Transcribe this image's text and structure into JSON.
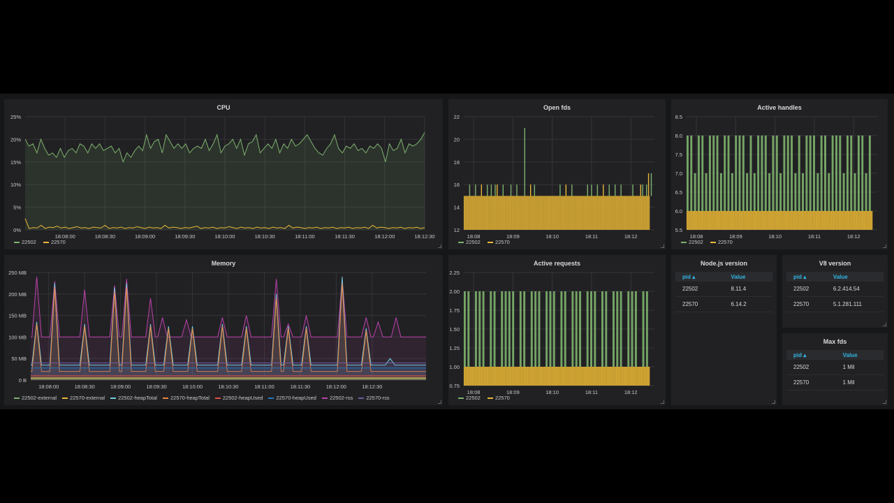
{
  "colors": {
    "green": "#7eb26d",
    "yellow": "#eab839",
    "blue": "#6ed0e0",
    "orange": "#ef843c",
    "red": "#e24d42",
    "darkblue": "#1f78c1",
    "pink": "#ba43a9",
    "violet": "#705da0"
  },
  "panels": {
    "cpu": {
      "title": "CPU",
      "chart_data": {
        "type": "line",
        "title": "CPU",
        "y_ticks": [
          "0%",
          "5%",
          "10%",
          "15%",
          "20%",
          "25%"
        ],
        "ylim": [
          0,
          25
        ],
        "x_ticks": [
          "18:08:00",
          "18:08:30",
          "18:09:00",
          "18:09:30",
          "18:10:00",
          "18:10:30",
          "18:11:00",
          "18:11:30",
          "18:12:00",
          "18:12:30"
        ],
        "xlim_seconds": [
          0,
          300
        ],
        "legend": [
          "22502",
          "22570"
        ],
        "series": [
          {
            "name": "22502",
            "color": "#7eb26d",
            "fill": true,
            "values": [
              20,
              18.5,
              19,
              17,
              20,
              18,
              16.5,
              17,
              16,
              18,
              16,
              17.5,
              18,
              17,
              19,
              18.5,
              17,
              19,
              18,
              19,
              17.5,
              18,
              18.5,
              17,
              18,
              15,
              17,
              16,
              17.5,
              18.5,
              17.5,
              21,
              18,
              19.5,
              20,
              17,
              21,
              19.5,
              18,
              19,
              18,
              19,
              17,
              18,
              18.5,
              18,
              20,
              17.5,
              19,
              21,
              17,
              18.5,
              19,
              20,
              18,
              20,
              16.5,
              19,
              19.5,
              21,
              17,
              18,
              19,
              18,
              20,
              17,
              19,
              18,
              20,
              18.5,
              19,
              20,
              21,
              19.5,
              18,
              17,
              16.5,
              18,
              19,
              21,
              18,
              17,
              18.5,
              18,
              19,
              17.5,
              18,
              17,
              18.5,
              18,
              19,
              18,
              15,
              19,
              17.5,
              18,
              20,
              17,
              19,
              18.5,
              19,
              20,
              21.5
            ]
          },
          {
            "name": "22570",
            "color": "#eab839",
            "fill": false,
            "values": [
              2.5,
              0.3,
              0.5,
              0.4,
              1,
              0.3,
              0.6,
              0.5,
              0.8,
              0.4,
              0.6,
              0.3,
              0.5,
              0.7,
              0.4,
              0.5,
              0.3,
              0.6,
              0.5,
              0.4,
              1,
              0.3,
              0.5,
              0.4,
              0.6,
              0.3,
              0.5,
              0.4,
              0.7,
              0.5,
              0.3,
              0.6,
              0.4,
              0.5,
              0.3,
              1,
              0.4,
              0.6,
              0.5,
              0.3,
              0.5,
              0.4,
              0.6,
              0.8,
              0.3,
              0.5,
              0.4,
              0.6,
              0.3,
              0.5,
              0.4,
              0.7,
              0.5,
              0.3,
              0.6,
              0.4,
              0.5,
              0.3,
              0.6,
              0.4,
              0.5,
              0.3,
              0.6,
              0.4,
              0.5,
              0.3,
              1,
              0.4,
              0.6,
              0.5,
              0.3,
              0.5,
              0.4,
              0.6,
              0.3,
              0.5,
              0.4,
              0.6,
              0.3,
              0.5,
              0.4,
              0.6,
              0.3,
              0.5,
              0.4,
              0.6,
              0.3,
              1,
              0.4,
              0.6,
              0.5,
              0.3,
              0.5,
              0.4,
              0.6,
              0.3,
              0.5,
              0.4,
              0.6,
              0.3,
              0.5
            ]
          }
        ]
      }
    },
    "openfds": {
      "title": "Open fds",
      "chart_data": {
        "type": "bar",
        "title": "Open fds",
        "y_ticks": [
          "12",
          "14",
          "16",
          "18",
          "20",
          "22"
        ],
        "ylim": [
          12,
          22
        ],
        "x_ticks": [
          "18:08",
          "18:09",
          "18:10",
          "18:11",
          "18:12"
        ],
        "xlim_minutes": [
          7.75,
          12.6
        ],
        "legend": [
          "22502",
          "22570"
        ],
        "series": [
          {
            "name": "22502",
            "color": "#7eb26d",
            "base": 15,
            "spikes": [
              {
                "x": 7.9,
                "v": 16
              },
              {
                "x": 8.05,
                "v": 16
              },
              {
                "x": 8.35,
                "v": 16
              },
              {
                "x": 8.45,
                "v": 16
              },
              {
                "x": 8.55,
                "v": 16
              },
              {
                "x": 8.75,
                "v": 16
              },
              {
                "x": 8.95,
                "v": 16
              },
              {
                "x": 9.1,
                "v": 16
              },
              {
                "x": 9.3,
                "v": 21
              },
              {
                "x": 9.55,
                "v": 16
              },
              {
                "x": 10.2,
                "v": 16
              },
              {
                "x": 10.5,
                "v": 16
              },
              {
                "x": 10.9,
                "v": 16
              },
              {
                "x": 11.0,
                "v": 16
              },
              {
                "x": 11.15,
                "v": 16
              },
              {
                "x": 11.45,
                "v": 16
              },
              {
                "x": 11.6,
                "v": 16
              },
              {
                "x": 11.75,
                "v": 16
              },
              {
                "x": 12.05,
                "v": 16
              },
              {
                "x": 12.3,
                "v": 16
              },
              {
                "x": 12.4,
                "v": 16
              },
              {
                "x": 12.52,
                "v": 17
              }
            ]
          },
          {
            "name": "22570",
            "color": "#eab839",
            "base": 15,
            "spikes": [
              {
                "x": 8.2,
                "v": 16
              },
              {
                "x": 8.6,
                "v": 16
              },
              {
                "x": 9.45,
                "v": 16
              },
              {
                "x": 10.35,
                "v": 16
              },
              {
                "x": 11.3,
                "v": 16
              },
              {
                "x": 12.45,
                "v": 17
              },
              {
                "x": 12.25,
                "v": 16
              }
            ]
          }
        ]
      }
    },
    "handles": {
      "title": "Active handles",
      "chart_data": {
        "type": "bar",
        "title": "Active handles",
        "y_ticks": [
          "5.5",
          "6.0",
          "6.5",
          "7.0",
          "7.5",
          "8.0",
          "8.5"
        ],
        "ylim": [
          5.5,
          8.5
        ],
        "x_ticks": [
          "18:08",
          "18:09",
          "18:10",
          "18:11",
          "18:12"
        ],
        "xlim_minutes": [
          7.75,
          12.6
        ],
        "legend": [
          "22502",
          "22570"
        ],
        "series": [
          {
            "name": "22502",
            "color": "#7eb26d",
            "pattern": [
              8,
              8,
              7,
              8,
              8,
              7,
              8,
              8,
              8,
              7,
              8,
              8,
              7,
              8,
              8,
              8,
              7,
              8,
              7,
              8,
              8,
              8,
              7,
              8,
              8,
              7,
              8,
              8,
              8,
              7,
              8,
              7,
              8,
              8,
              8,
              7,
              8,
              8,
              7,
              8,
              8,
              8,
              7,
              8,
              8,
              7,
              8,
              8,
              7,
              8
            ]
          },
          {
            "name": "22570",
            "color": "#eab839",
            "value": 6
          }
        ]
      }
    },
    "memory": {
      "title": "Memory",
      "chart_data": {
        "type": "line",
        "title": "Memory",
        "y_ticks": [
          "0 B",
          "50 MB",
          "100 MB",
          "150 MB",
          "200 MB",
          "250 MB"
        ],
        "ylim": [
          0,
          250
        ],
        "x_ticks": [
          "18:08:00",
          "18:08:30",
          "18:09:00",
          "18:09:30",
          "18:10:00",
          "18:10:30",
          "18:11:00",
          "18:11:30",
          "18:12:00",
          "18:12:30"
        ],
        "xlim_seconds": [
          -15,
          315
        ],
        "legend": [
          "22502-external",
          "22570-external",
          "22502-heapTotal",
          "22570-heapTotal",
          "22502-heapUsed",
          "22570-heapUsed",
          "22502-rss",
          "22570-rss"
        ],
        "legend_colors": [
          "#7eb26d",
          "#eab839",
          "#6ed0e0",
          "#ef843c",
          "#e24d42",
          "#1f78c1",
          "#ba43a9",
          "#705da0"
        ],
        "series": [
          {
            "name": "22502-rss",
            "color": "#ba43a9",
            "base": 100,
            "peaks": [
              {
                "t": -10,
                "v": 240
              },
              {
                "t": 5,
                "v": 230
              },
              {
                "t": 30,
                "v": 210
              },
              {
                "t": 55,
                "v": 220
              },
              {
                "t": 65,
                "v": 235
              },
              {
                "t": 85,
                "v": 190
              },
              {
                "t": 95,
                "v": 145
              },
              {
                "t": 115,
                "v": 140
              },
              {
                "t": 145,
                "v": 145
              },
              {
                "t": 165,
                "v": 150
              },
              {
                "t": 190,
                "v": 235
              },
              {
                "t": 200,
                "v": 130
              },
              {
                "t": 215,
                "v": 150
              },
              {
                "t": 245,
                "v": 235
              },
              {
                "t": 265,
                "v": 145
              },
              {
                "t": 275,
                "v": 135
              },
              {
                "t": 290,
                "v": 145
              },
              {
                "t": 305,
                "v": 100
              }
            ]
          },
          {
            "name": "22502-heapTotal",
            "color": "#6ed0e0",
            "base": 35,
            "peaks": [
              {
                "t": -10,
                "v": 135
              },
              {
                "t": 5,
                "v": 225
              },
              {
                "t": 30,
                "v": 130
              },
              {
                "t": 55,
                "v": 215
              },
              {
                "t": 65,
                "v": 225
              },
              {
                "t": 85,
                "v": 130
              },
              {
                "t": 100,
                "v": 125
              },
              {
                "t": 120,
                "v": 125
              },
              {
                "t": 145,
                "v": 130
              },
              {
                "t": 165,
                "v": 125
              },
              {
                "t": 190,
                "v": 200
              },
              {
                "t": 200,
                "v": 125
              },
              {
                "t": 215,
                "v": 125
              },
              {
                "t": 245,
                "v": 240
              },
              {
                "t": 265,
                "v": 120
              },
              {
                "t": 285,
                "v": 50
              }
            ]
          },
          {
            "name": "22570-heapTotal",
            "color": "#ef843c",
            "base": 20,
            "peaks": [
              {
                "t": -10,
                "v": 130
              },
              {
                "t": 5,
                "v": 215
              },
              {
                "t": 30,
                "v": 125
              },
              {
                "t": 55,
                "v": 205
              },
              {
                "t": 65,
                "v": 215
              },
              {
                "t": 85,
                "v": 125
              },
              {
                "t": 100,
                "v": 120
              },
              {
                "t": 120,
                "v": 120
              },
              {
                "t": 145,
                "v": 125
              },
              {
                "t": 165,
                "v": 120
              },
              {
                "t": 190,
                "v": 190
              },
              {
                "t": 200,
                "v": 120
              },
              {
                "t": 215,
                "v": 120
              },
              {
                "t": 245,
                "v": 225
              },
              {
                "t": 265,
                "v": 115
              }
            ]
          },
          {
            "name": "22570-heapUsed",
            "color": "#1f78c1",
            "base": 28,
            "peaks": []
          },
          {
            "name": "22502-heapUsed",
            "color": "#e24d42",
            "base": 10,
            "peaks": []
          },
          {
            "name": "22570-rss",
            "color": "#705da0",
            "base": 40,
            "peaks": []
          },
          {
            "name": "22502-external",
            "color": "#7eb26d",
            "base": 3,
            "peaks": []
          },
          {
            "name": "22570-external",
            "color": "#eab839",
            "base": 5,
            "peaks": []
          }
        ]
      }
    },
    "requests": {
      "title": "Active requests",
      "chart_data": {
        "type": "bar",
        "title": "Active requests",
        "y_ticks": [
          "0.75",
          "1.00",
          "1.25",
          "1.50",
          "1.75",
          "2.00",
          "2.25"
        ],
        "ylim": [
          0.75,
          2.25
        ],
        "x_ticks": [
          "18:08",
          "18:09",
          "18:10",
          "18:11",
          "18:12"
        ],
        "xlim_minutes": [
          7.75,
          12.6
        ],
        "legend": [
          "22502",
          "22570"
        ],
        "series": [
          {
            "name": "22502",
            "color": "#7eb26d",
            "pattern": [
              2,
              2,
              1,
              2,
              2,
              2,
              1,
              2,
              2,
              1,
              2,
              2,
              2,
              2,
              1,
              2,
              2,
              1,
              2,
              2,
              2,
              1,
              2,
              2,
              2,
              1,
              2,
              2,
              1,
              2,
              2,
              2,
              1,
              2,
              2,
              2,
              1,
              2,
              2,
              1,
              2,
              2,
              2,
              1,
              2,
              2,
              2,
              1,
              2,
              2
            ]
          },
          {
            "name": "22570",
            "color": "#eab839",
            "value": 1
          }
        ]
      }
    },
    "nodejs": {
      "title": "Node.js version",
      "columns": [
        "pid",
        "Value"
      ],
      "sort_icon": "sort-asc-icon",
      "rows": [
        [
          "22502",
          "8.11.4"
        ],
        [
          "22570",
          "6.14.2"
        ]
      ]
    },
    "v8": {
      "title": "V8 version",
      "columns": [
        "pid",
        "Value"
      ],
      "sort_icon": "sort-asc-icon",
      "rows": [
        [
          "22502",
          "6.2.414.54"
        ],
        [
          "22570",
          "5.1.281.111"
        ]
      ]
    },
    "maxfds": {
      "title": "Max fds",
      "columns": [
        "pid",
        "Value"
      ],
      "sort_icon": "sort-asc-icon",
      "rows": [
        [
          "22502",
          "1 Mil"
        ],
        [
          "22570",
          "1 Mil"
        ]
      ]
    }
  }
}
